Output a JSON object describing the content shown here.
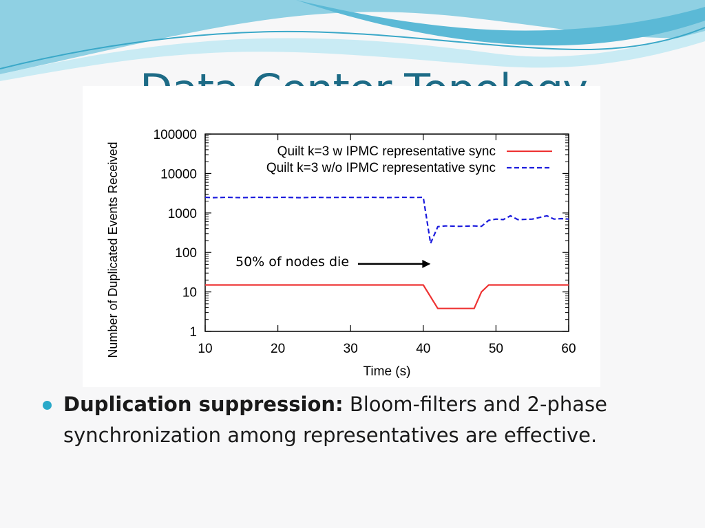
{
  "slide": {
    "title": "Data Center Topology",
    "bullet_bold": "Duplication suppression:",
    "bullet_text": " Bloom-filters and 2-phase synchronization among representatives are effective.",
    "colors": {
      "title": "#1d6b86",
      "bullet": "#2aa9c9",
      "wave_dark": "#6fc3dc",
      "wave_light": "#bfe6f1"
    }
  },
  "chart_data": {
    "type": "line",
    "title": "",
    "xlabel": "Time (s)",
    "ylabel": "Number of Duplicated Events Received",
    "xlim": [
      10,
      60
    ],
    "ylim": [
      1,
      100000
    ],
    "yscale": "log",
    "x_ticks": [
      "10",
      "20",
      "30",
      "40",
      "50",
      "60"
    ],
    "y_ticks": [
      "1",
      "10",
      "100",
      "1000",
      "10000",
      "100000"
    ],
    "legend_position": "top-right",
    "grid": false,
    "series": [
      {
        "name": "Quilt k=3 w IPMC representative sync",
        "color": "#ee3333",
        "dash": "solid",
        "x": [
          10,
          40,
          42,
          47,
          48,
          49,
          60
        ],
        "y": [
          15,
          15,
          3.8,
          3.8,
          10,
          15,
          15
        ]
      },
      {
        "name": "Quilt k=3 w/o IPMC representative sync",
        "color": "#1b1bdd",
        "dash": "dashed",
        "x": [
          10,
          11,
          13,
          15,
          17,
          19,
          21,
          23,
          25,
          27,
          29,
          31,
          33,
          35,
          37,
          39,
          40,
          41,
          42,
          43,
          45,
          47,
          48,
          49,
          50,
          51,
          52,
          53,
          55,
          57,
          58,
          59,
          60
        ],
        "y": [
          2500,
          2450,
          2500,
          2450,
          2500,
          2480,
          2500,
          2450,
          2500,
          2470,
          2500,
          2480,
          2500,
          2460,
          2500,
          2480,
          2500,
          170,
          450,
          470,
          460,
          470,
          460,
          650,
          700,
          680,
          850,
          680,
          700,
          850,
          700,
          720,
          700
        ]
      }
    ],
    "annotation": {
      "text": "50% of nodes die",
      "arrow_to_x": 41,
      "arrow_to_y": 60
    }
  }
}
